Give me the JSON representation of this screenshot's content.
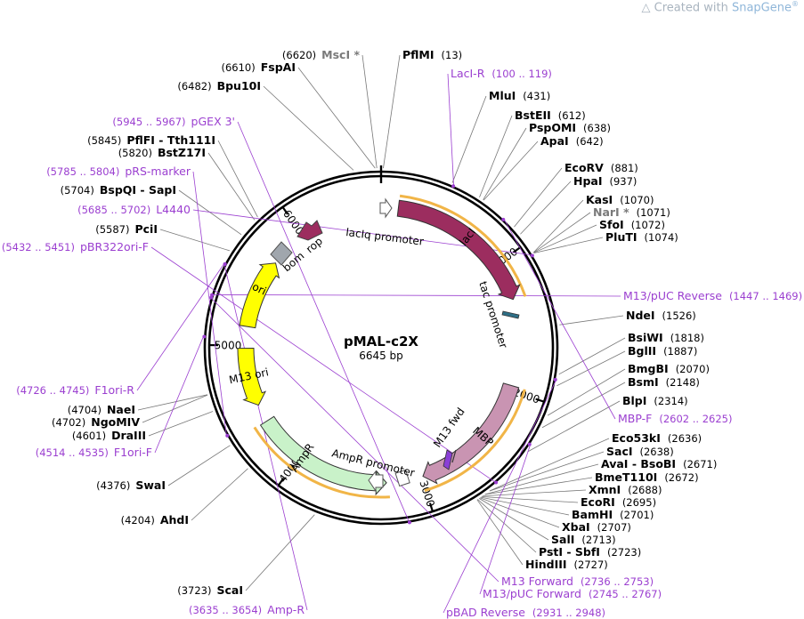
{
  "watermark": {
    "prefix": "Created with ",
    "brand": "SnapGene",
    "mark": "®"
  },
  "plasmid": {
    "name": "pMAL-c2X",
    "length_label": "6645 bp",
    "length": 6645
  },
  "ticks": [
    "1000",
    "2000",
    "3000",
    "4000",
    "5000",
    "6000"
  ],
  "enzymes": [
    {
      "name": "PflMI",
      "pos": "(13)",
      "gray": false,
      "star": false
    },
    {
      "name": "MluI",
      "pos": "(431)",
      "gray": false,
      "star": false
    },
    {
      "name": "BstEII",
      "pos": "(612)",
      "gray": false,
      "star": false
    },
    {
      "name": "PspOMI",
      "pos": "(638)",
      "gray": false,
      "star": false
    },
    {
      "name": "ApaI",
      "pos": "(642)",
      "gray": false,
      "star": false
    },
    {
      "name": "EcoRV",
      "pos": "(881)",
      "gray": false,
      "star": false
    },
    {
      "name": "HpaI",
      "pos": "(937)",
      "gray": false,
      "star": false
    },
    {
      "name": "KasI",
      "pos": "(1070)",
      "gray": false,
      "star": false
    },
    {
      "name": "NarI",
      "pos": "(1071)",
      "gray": true,
      "star": true
    },
    {
      "name": "SfoI",
      "pos": "(1072)",
      "gray": false,
      "star": false
    },
    {
      "name": "PluTI",
      "pos": "(1074)",
      "gray": false,
      "star": false
    },
    {
      "name": "NdeI",
      "pos": "(1526)",
      "gray": false,
      "star": false
    },
    {
      "name": "BsiWI",
      "pos": "(1818)",
      "gray": false,
      "star": false
    },
    {
      "name": "BglII",
      "pos": "(1887)",
      "gray": false,
      "star": false
    },
    {
      "name": "BmgBI",
      "pos": "(2070)",
      "gray": false,
      "star": false
    },
    {
      "name": "BsmI",
      "pos": "(2148)",
      "gray": false,
      "star": false
    },
    {
      "name": "BlpI",
      "pos": "(2314)",
      "gray": false,
      "star": false
    },
    {
      "name": "Eco53kI",
      "pos": "(2636)",
      "gray": false,
      "star": false
    },
    {
      "name": "SacI",
      "pos": "(2638)",
      "gray": false,
      "star": false
    },
    {
      "name": "AvaI - BsoBI",
      "pos": "(2671)",
      "gray": false,
      "star": false
    },
    {
      "name": "BmeT110I",
      "pos": "(2672)",
      "gray": false,
      "star": false
    },
    {
      "name": "XmnI",
      "pos": "(2688)",
      "gray": false,
      "star": false
    },
    {
      "name": "EcoRI",
      "pos": "(2695)",
      "gray": false,
      "star": false
    },
    {
      "name": "BamHI",
      "pos": "(2701)",
      "gray": false,
      "star": false
    },
    {
      "name": "XbaI",
      "pos": "(2707)",
      "gray": false,
      "star": false
    },
    {
      "name": "SalI",
      "pos": "(2713)",
      "gray": false,
      "star": false
    },
    {
      "name": "PstI - SbfI",
      "pos": "(2723)",
      "gray": false,
      "star": false
    },
    {
      "name": "HindIII",
      "pos": "(2727)",
      "gray": false,
      "star": false
    },
    {
      "name": "ScaI",
      "pos": "(3723)",
      "gray": false,
      "star": false
    },
    {
      "name": "AhdI",
      "pos": "(4204)",
      "gray": false,
      "star": false
    },
    {
      "name": "SwaI",
      "pos": "(4376)",
      "gray": false,
      "star": false
    },
    {
      "name": "DraIII",
      "pos": "(4601)",
      "gray": false,
      "star": false
    },
    {
      "name": "NgoMIV",
      "pos": "(4702)",
      "gray": false,
      "star": false
    },
    {
      "name": "NaeI",
      "pos": "(4704)",
      "gray": false,
      "star": false
    },
    {
      "name": "PciI",
      "pos": "(5587)",
      "gray": false,
      "star": false
    },
    {
      "name": "BspQI - SapI",
      "pos": "(5704)",
      "gray": false,
      "star": false
    },
    {
      "name": "BstZ17I",
      "pos": "(5820)",
      "gray": false,
      "star": false
    },
    {
      "name": "PflFI - Tth111I",
      "pos": "(5845)",
      "gray": false,
      "star": false
    },
    {
      "name": "Bpu10I",
      "pos": "(6482)",
      "gray": false,
      "star": false
    },
    {
      "name": "FspAI",
      "pos": "(6610)",
      "gray": false,
      "star": false
    },
    {
      "name": "MscI",
      "pos": "(6620)",
      "gray": true,
      "star": true
    }
  ],
  "primers": [
    {
      "name": "LacI-R",
      "pos": "(100 .. 119)"
    },
    {
      "name": "M13/pUC Reverse",
      "pos": "(1447 .. 1469)"
    },
    {
      "name": "MBP-F",
      "pos": "(2602 .. 2625)"
    },
    {
      "name": "M13 Forward",
      "pos": "(2736 .. 2753)"
    },
    {
      "name": "M13/pUC Forward",
      "pos": "(2745 .. 2767)"
    },
    {
      "name": "pBAD Reverse",
      "pos": "(2931 .. 2948)"
    },
    {
      "name": "Amp-R",
      "pos": "(3635 .. 3654)"
    },
    {
      "name": "F1ori-F",
      "pos": "(4514 .. 4535)"
    },
    {
      "name": "F1ori-R",
      "pos": "(4726 .. 4745)"
    },
    {
      "name": "pBR322ori-F",
      "pos": "(5432 .. 5451)"
    },
    {
      "name": "L4440",
      "pos": "(5685 .. 5702)"
    },
    {
      "name": "pRS-marker",
      "pos": "(5785 .. 5804)"
    },
    {
      "name": "pGEX 3'",
      "pos": "(5945 .. 5967)"
    }
  ],
  "features": [
    {
      "name": "lacI",
      "color": "#9c2d5f"
    },
    {
      "name": "MBP",
      "color": "#c994b2"
    },
    {
      "name": "AmpR",
      "color": "#c9f2c9"
    },
    {
      "name": "ori",
      "color": "#ffff00"
    },
    {
      "name": "M13 ori",
      "color": "#ffff00"
    },
    {
      "name": "rop",
      "color": "#9c2d5f"
    },
    {
      "name": "bom",
      "color": "#a0a6ad"
    }
  ],
  "promoter_labels": [
    "lacIq promoter",
    "tac promoter",
    "AmpR promoter",
    "M13 fwd"
  ],
  "colors": {
    "primer": "#9b3fd0",
    "orf_highlight": "#f1b547",
    "backbone": "#000000"
  }
}
